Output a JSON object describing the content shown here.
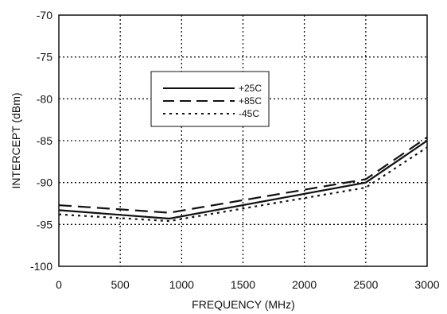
{
  "chart_data": {
    "type": "line",
    "title": "",
    "xlabel": "FREQUENCY (MHz)",
    "ylabel": "INTERCEPT (dBm)",
    "xlim": [
      0,
      3000
    ],
    "ylim": [
      -100,
      -70
    ],
    "x_ticks": [
      0,
      500,
      1000,
      1500,
      2000,
      2500,
      3000
    ],
    "y_ticks": [
      -100,
      -95,
      -90,
      -85,
      -80,
      -75,
      -70
    ],
    "x_tick_labels": [
      "0",
      "500",
      "1000",
      "1500",
      "2000",
      "2500",
      "3000"
    ],
    "y_tick_labels": [
      "-100",
      "-95",
      "-90",
      "-85",
      "-80",
      "-75",
      "-70"
    ],
    "grid": true,
    "grid_style": "dotted",
    "legend_position": "upper-center",
    "series": [
      {
        "name": "+25C",
        "line_style": "solid",
        "color": "#111111",
        "x": [
          0,
          900,
          2500,
          3000
        ],
        "y": [
          -93.3,
          -94.3,
          -90.0,
          -85.0
        ]
      },
      {
        "name": "+85C",
        "line_style": "dashed",
        "color": "#111111",
        "x": [
          0,
          900,
          2500,
          3000
        ],
        "y": [
          -92.7,
          -93.6,
          -89.6,
          -84.6
        ]
      },
      {
        "name": "-45C",
        "line_style": "dotted",
        "color": "#111111",
        "x": [
          0,
          900,
          2500,
          3000
        ],
        "y": [
          -93.8,
          -94.6,
          -90.6,
          -85.8
        ]
      }
    ]
  }
}
